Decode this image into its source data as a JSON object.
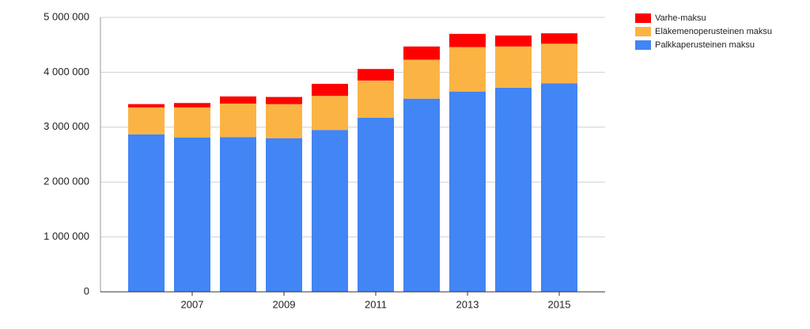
{
  "chart_data": {
    "type": "stacked-bar",
    "categories": [
      null,
      "2007",
      null,
      "2009",
      null,
      "2011",
      null,
      "2013",
      null,
      "2015"
    ],
    "series": [
      {
        "name": "Palkkaperusteinen maksu",
        "color": "#4285f4",
        "values": [
          2870000,
          2810000,
          2820000,
          2800000,
          2950000,
          3170000,
          3520000,
          3650000,
          3720000,
          3800000
        ]
      },
      {
        "name": "Eläkemenoperusteinen maksu",
        "color": "#fbb444",
        "values": [
          490000,
          550000,
          610000,
          620000,
          620000,
          680000,
          710000,
          810000,
          750000,
          720000
        ]
      },
      {
        "name": "Varhe-maksu",
        "color": "#ff0000",
        "values": [
          60000,
          80000,
          130000,
          130000,
          220000,
          210000,
          240000,
          240000,
          200000,
          190000
        ]
      }
    ],
    "ylim": [
      0,
      5000000
    ],
    "yticks": [
      0,
      {
        "value": 1000000,
        "label": "1 000 000"
      },
      {
        "value": 2000000,
        "label": "2 000 000"
      },
      {
        "value": 3000000,
        "label": "3 000 000"
      },
      {
        "value": 4000000,
        "label": "4 000 000"
      },
      {
        "value": 5000000,
        "label": "5 000 000"
      }
    ],
    "grid": true,
    "legend": "top-right"
  }
}
